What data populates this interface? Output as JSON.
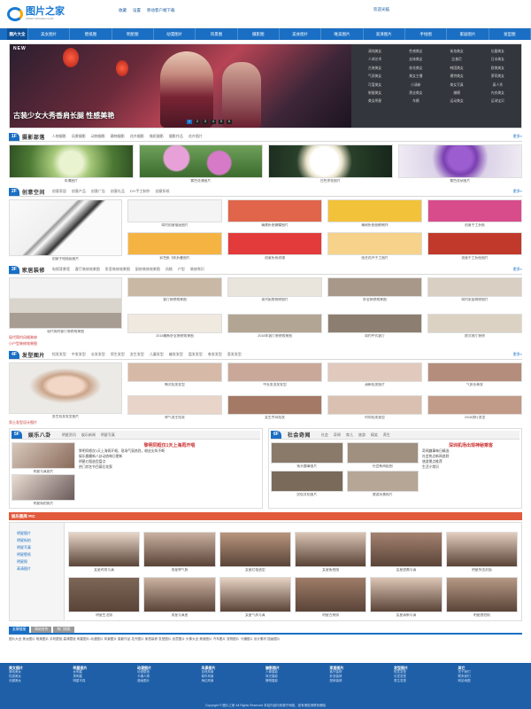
{
  "colors": {
    "accent": "#1a6fc4",
    "nav": "#1a6fc4",
    "star_bar": "#e15a3c",
    "footer": "#1e5fa8"
  },
  "header": {
    "logo_text": "图片之家",
    "logo_sub": "WWW.TUPIANZJ.COM",
    "top_links": [
      "收藏",
      "设置",
      "移动客户端下载"
    ],
    "top_right": "欢迎光临"
  },
  "nav": {
    "home": "图片大全",
    "items": [
      "美女图片",
      "壁纸图",
      "明星图",
      "动漫图片",
      "风景图",
      "摄影图",
      "美食图片",
      "唯美图片",
      "高清图片",
      "手绘图",
      "家居图片",
      "发型图"
    ]
  },
  "hero": {
    "badge": "NEW",
    "caption": "古装少女大秀香肩长腿 性感美艳",
    "pages": [
      "1",
      "2",
      "3",
      "4",
      "5",
      "6"
    ],
    "tags": [
      "清纯美女",
      "性感美女",
      "街拍美女",
      "长腿美女",
      "人体艺术",
      "丝袜美女",
      "比基尼",
      "日本美女",
      "古装美女",
      "校花美女",
      "韩国美女",
      "欧美美女",
      "气质美女",
      "美女主播",
      "模特美女",
      "萝莉美女",
      "可爱美女",
      "小清新",
      "美女写真",
      "真人秀",
      "制服美女",
      "黑丝美女",
      "嫩模",
      "内衣美女",
      "美女明星",
      "车模",
      "运动美女",
      "足球宝贝"
    ]
  },
  "sections": {
    "s1": {
      "badge": "1F",
      "title": "摄影部落",
      "links": [
        "人物摄影",
        "风景摄影",
        "动物摄影",
        "静物摄影",
        "花卉摄影",
        "微距摄影",
        "摄影作品",
        "花卉图片"
      ],
      "more": "更多»",
      "items": [
        "玫瑰图片",
        "紫色花海图片",
        "白色茶花图片",
        "紫色花朵图片"
      ]
    },
    "s2": {
      "badge": "2F",
      "title": "创意空间",
      "links": [
        "创意家居",
        "创意产品",
        "创意广告",
        "创意礼品",
        "DIY手工制作",
        "创意折纸"
      ],
      "more": "更多»",
      "big_caption": "创意手绘插画图片",
      "items": [
        "简约创意插画图片",
        "精美折纸蝴蝶图片",
        "精致折纸纸鹤制作",
        "创意手工折纸",
        "彩色纸飞机折叠图片",
        "创意折纸玫瑰",
        "纸艺花卉手工图片",
        "创意手工折纸图片"
      ]
    },
    "s3": {
      "badge": "3F",
      "title": "家居装修",
      "links": [
        "电视背景墙",
        "客厅装修效果图",
        "卧室装修效果图",
        "厨房装修效果图",
        "风格",
        "户型",
        "装修常识"
      ],
      "more": "更多»",
      "big_caption": "现代简约客厅装修效果图",
      "side": [
        "现代简约风格装修",
        "小户型装修效果图",
        "欧式风格装修",
        "中式装修效果图"
      ],
      "items": [
        "客厅装修效果图",
        "现代厨房装修图片",
        "卧室装修效果图",
        "简约家居装修图片",
        "2018最新卧室装修效果图",
        "2018年客厅装修效果图",
        "简约中式客厅",
        "欧式餐厅装修"
      ]
    },
    "s4": {
      "badge": "4F",
      "title": "发型图片",
      "links": [
        "短发发型",
        "中发发型",
        "长发发型",
        "男生发型",
        "女生发型",
        "儿童发型",
        "编发发型",
        "盘发发型",
        "卷发发型",
        "直发发型"
      ],
      "more": "更多»",
      "big_caption": "男生短发发型图片",
      "side": [
        "男士发型设计图片",
        "帅气男生发型大全"
      ],
      "items": [
        "韩式短发发型",
        "中长发烫发发型",
        "清新短发图片",
        "气质长卷发",
        "帅气男生短发",
        "女生齐耳短发",
        "时尚短发造型",
        "2018流行发型"
      ]
    },
    "s5": {
      "badge": "5F",
      "title": "娱乐八卦",
      "links": [
        "明星资讯",
        "娱乐新闻",
        "明星写真"
      ],
      "more": "更多»",
      "headline": "黎明同框仅1天上海再开唱",
      "text": [
        "黎明同框仅1天上海再开唱，现场气氛热烈，粉丝尖叫不断",
        "娱乐圈最新八卦动态每日更新",
        "明星红毯造型盘点",
        "热门综艺节目幕后花絮"
      ],
      "items": [
        "明星写真图片",
        "明星街拍照片"
      ]
    },
    "s6": {
      "badge": "6F",
      "title": "社会奇闻",
      "links": [
        "社会",
        "奇闻",
        "育儿",
        "旅游",
        "搞笑",
        "养生"
      ],
      "more": "更多»",
      "headline": "深圳机场出现神秘乘客",
      "text": [
        "奇闻趣事每日精选",
        "社会热点新闻追踪",
        "旅游景点推荐",
        "生活小常识"
      ],
      "items": [
        "街头趣事图片",
        "社会新闻配图",
        "民俗文化图片",
        "旅游风景照片"
      ]
    }
  },
  "stars": {
    "bar_title": "娱乐图库 PIC",
    "menu": [
      "明星图片",
      "明星街拍",
      "明星写真",
      "明星壁纸",
      "明星照",
      "高清图片"
    ],
    "label": "推荐",
    "more": "更多»",
    "items": [
      "女星时尚写真",
      "男星帅气照",
      "女星红毯造型",
      "女星街拍图",
      "女星甜美写真",
      "明星杂志封面",
      "明星生活照",
      "男星写真图",
      "女星气质写真",
      "明星古装照",
      "女星清新写真",
      "明星旅拍照"
    ]
  },
  "links": {
    "tabs": [
      "友情链接",
      "网站合作",
      "热门搜索"
    ],
    "text": "图片大全 美女图片 唯美图片 手机壁纸 高清壁纸 明星图片 动漫图片 风景图片 摄影作品 花卉图片 家居装修 发型图片 创意图片 头像大全 美食图片 汽车图片 宠物图片 卡通图片 设计素材 插画图片"
  },
  "footer": {
    "cols": [
      {
        "title": "美女图片",
        "links": [
          "清纯美女",
          "性感美女",
          "长腿美女"
        ]
      },
      {
        "title": "明星图片",
        "links": [
          "女明星",
          "男明星",
          "明星写真"
        ]
      },
      {
        "title": "动漫图片",
        "links": [
          "动漫壁纸",
          "卡通人物",
          "漫画图片"
        ]
      },
      {
        "title": "风景图片",
        "links": [
          "自然风景",
          "城市风景",
          "海边风景"
        ]
      },
      {
        "title": "摄影图片",
        "links": [
          "人像摄影",
          "风光摄影",
          "静物摄影"
        ]
      },
      {
        "title": "家居图片",
        "links": [
          "客厅装修",
          "卧室装修",
          "厨房装修"
        ]
      },
      {
        "title": "发型图片",
        "links": [
          "短发发型",
          "长发发型",
          "男生发型"
        ]
      },
      {
        "title": "其它",
        "links": [
          "关于我们",
          "联系我们",
          "网站地图"
        ]
      }
    ],
    "copyright": "Copyright © 图片之家 All Rights Reserved  本站内容均来源于网络，如有侵权请联系删除"
  }
}
